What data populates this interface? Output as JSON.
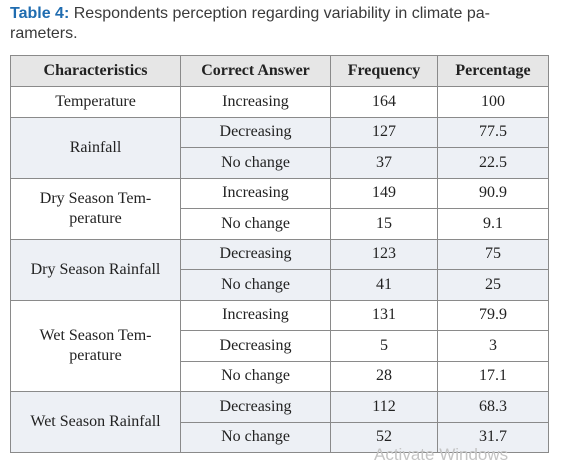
{
  "caption": {
    "label": "Table 4:",
    "lines": [
      "Respondents perception regarding variability in climate pa-",
      "rameters."
    ]
  },
  "table": {
    "header": [
      "Characteristics",
      "Correct Answer",
      "Frequency",
      "Percentage"
    ],
    "groups": [
      {
        "characteristic": [
          "Temperature"
        ],
        "rows": [
          [
            "Increasing",
            164,
            100
          ]
        ]
      },
      {
        "characteristic": [
          "Rainfall"
        ],
        "rows": [
          [
            "Decreasing",
            127,
            77.5
          ],
          [
            "No change",
            37,
            22.5
          ]
        ]
      },
      {
        "characteristic": [
          "Dry Season Tem-",
          "perature"
        ],
        "rows": [
          [
            "Increasing",
            149,
            90.9
          ],
          [
            "No change",
            15,
            9.1
          ]
        ]
      },
      {
        "characteristic": [
          "Dry Season Rainfall"
        ],
        "rows": [
          [
            "Decreasing",
            123,
            75
          ],
          [
            "No change",
            41,
            25
          ]
        ]
      },
      {
        "characteristic": [
          "Wet Season Tem-",
          "perature"
        ],
        "rows": [
          [
            "Increasing",
            131,
            79.9
          ],
          [
            "Decreasing",
            5,
            3
          ],
          [
            "No change",
            28,
            17.1
          ]
        ]
      },
      {
        "characteristic": [
          "Wet Season Rainfall"
        ],
        "rows": [
          [
            "Decreasing",
            112,
            68.3
          ],
          [
            "No change",
            52,
            31.7
          ]
        ]
      }
    ]
  },
  "watermark": "Activate Windows"
}
